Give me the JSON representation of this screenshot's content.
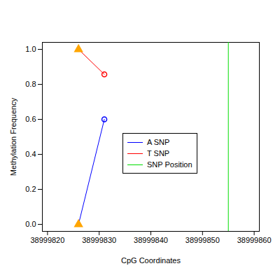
{
  "chart_data": {
    "type": "line",
    "x_label": "CpG Coordinates",
    "y_label": "Methylation Frequency",
    "x": [
      38999826,
      38999831
    ],
    "series": [
      {
        "name": "A SNP",
        "color": "#0000ff",
        "values": [
          0.0,
          0.6
        ],
        "marker": [
          "triangle",
          "circle"
        ],
        "colors": [
          "#ffa500",
          "#0000ff"
        ]
      },
      {
        "name": "T SNP",
        "color": "#ff0000",
        "values": [
          1.0,
          0.857
        ],
        "marker": [
          "triangle",
          "circle"
        ],
        "colors": [
          "#ffa500",
          "#ff0000"
        ]
      },
      {
        "name": "SNP Position",
        "color": "#00dd00",
        "type": "vline",
        "x": 38999855
      }
    ],
    "xlim": [
      38999819,
      38999861
    ],
    "xticks": [
      38999820,
      38999830,
      38999840,
      38999850,
      38999860
    ],
    "ylim": [
      -0.04,
      1.04
    ],
    "yticks": [
      {
        "value": 0,
        "label": "0.0"
      },
      {
        "value": 0.2,
        "label": "0.2"
      },
      {
        "value": 0.4,
        "label": "0.4"
      },
      {
        "value": 0.6,
        "label": "0.6"
      },
      {
        "value": 0.8,
        "label": "0.8"
      },
      {
        "value": 1,
        "label": "1.0"
      }
    ],
    "legend": "right",
    "grid": false
  }
}
